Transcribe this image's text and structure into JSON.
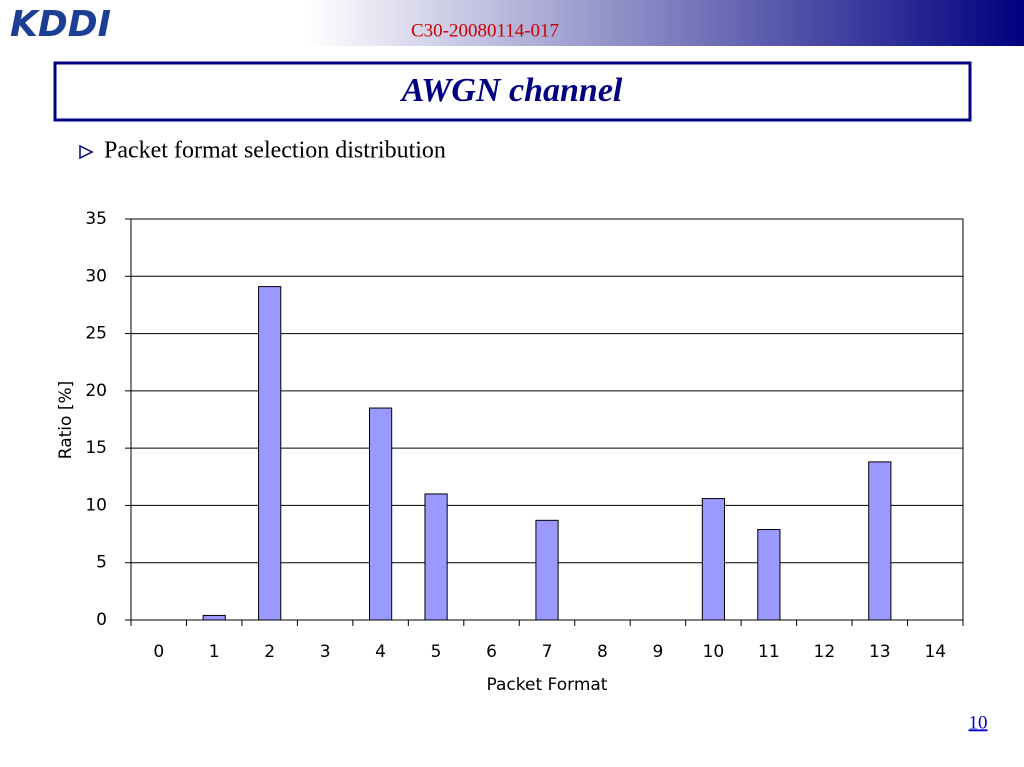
{
  "header": {
    "logo": "KDDI",
    "doc_id": "C30-20080114-017"
  },
  "title": "AWGN channel",
  "bullet": "Packet format selection distribution",
  "chart_data": {
    "type": "bar",
    "categories": [
      "0",
      "1",
      "2",
      "3",
      "4",
      "5",
      "6",
      "7",
      "8",
      "9",
      "10",
      "11",
      "12",
      "13",
      "14"
    ],
    "values": [
      0,
      0.4,
      29.1,
      0,
      18.5,
      11.0,
      0,
      8.7,
      0,
      0,
      10.6,
      7.9,
      0,
      13.8,
      0
    ],
    "color": "#9999ff",
    "ylim": [
      0,
      35
    ],
    "yticks": [
      0,
      5,
      10,
      15,
      20,
      25,
      30,
      35
    ],
    "grid": true,
    "x_label": "Packet Format",
    "y_label": "Ratio [%]"
  },
  "page_number": "10"
}
